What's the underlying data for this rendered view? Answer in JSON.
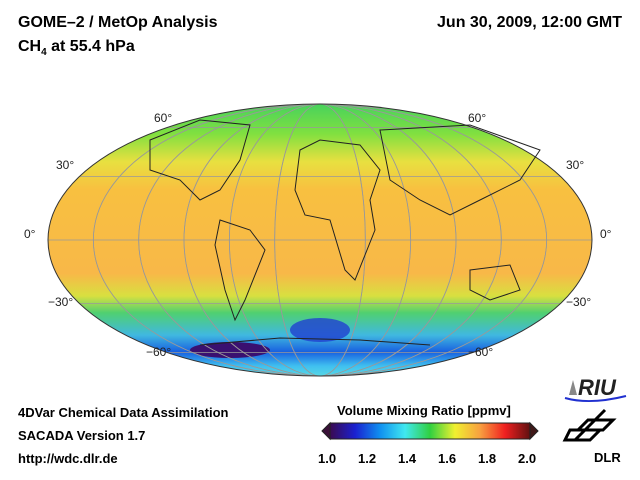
{
  "header": {
    "title": "GOME–2 / MetOp Analysis",
    "species": "CH",
    "species_sub": "4",
    "species_rest": " at 55.4 hPa",
    "datetime": "Jun 30, 2009, 12:00 GMT"
  },
  "lat_labels": [
    "60°",
    "30°",
    "0°",
    "−30°",
    "−60°"
  ],
  "footer": {
    "line1": "4DVar Chemical Data Assimilation",
    "line2": "SACADA Version 1.7",
    "line3": "http://wdc.dlr.de"
  },
  "colorbar": {
    "title": "Volume Mixing Ratio [ppmv]",
    "ticks": [
      "1.0",
      "1.2",
      "1.4",
      "1.6",
      "1.8",
      "2.0"
    ],
    "range": [
      1.0,
      2.0
    ],
    "colors": [
      "#3a0a50",
      "#1a20d0",
      "#1090f0",
      "#40e8f0",
      "#30d040",
      "#f0f030",
      "#f8a040",
      "#f02020",
      "#601010"
    ]
  },
  "logos": {
    "riu": "RIU",
    "dlr": "DLR"
  }
}
